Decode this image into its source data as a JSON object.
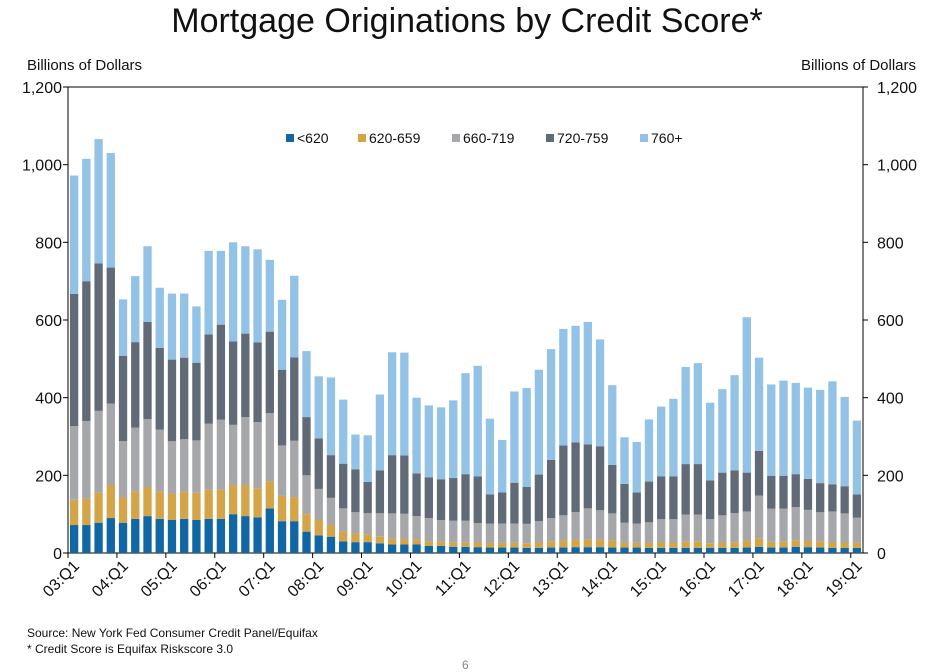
{
  "page_number": "6",
  "source_note": "Source: New York Fed Consumer Credit Panel/Equifax",
  "footnote": "* Credit Score is Equifax Riskscore 3.0",
  "chart_data": {
    "type": "bar",
    "stacked": true,
    "title": "Mortgage Originations by Credit Score*",
    "ylabel_left": "Billions of Dollars",
    "ylabel_right": "Billions of Dollars",
    "ylim": [
      0,
      1200
    ],
    "yticks": [
      0,
      200,
      400,
      600,
      800,
      1000,
      1200
    ],
    "ytick_labels": [
      "0",
      "200",
      "400",
      "600",
      "800",
      "1,000",
      "1,200"
    ],
    "grid": false,
    "legend_position": "top-center",
    "x_tick_labels": [
      "03:Q1",
      "04:Q1",
      "05:Q1",
      "06:Q1",
      "07:Q1",
      "08:Q1",
      "09:Q1",
      "10:Q1",
      "11:Q1",
      "12:Q1",
      "13:Q1",
      "14:Q1",
      "15:Q1",
      "16:Q1",
      "17:Q1",
      "18:Q1",
      "19:Q1"
    ],
    "categories": [
      "03:Q1",
      "03:Q2",
      "03:Q3",
      "03:Q4",
      "04:Q1",
      "04:Q2",
      "04:Q3",
      "04:Q4",
      "05:Q1",
      "05:Q2",
      "05:Q3",
      "05:Q4",
      "06:Q1",
      "06:Q2",
      "06:Q3",
      "06:Q4",
      "07:Q1",
      "07:Q2",
      "07:Q3",
      "07:Q4",
      "08:Q1",
      "08:Q2",
      "08:Q3",
      "08:Q4",
      "09:Q1",
      "09:Q2",
      "09:Q3",
      "09:Q4",
      "10:Q1",
      "10:Q2",
      "10:Q3",
      "10:Q4",
      "11:Q1",
      "11:Q2",
      "11:Q3",
      "11:Q4",
      "12:Q1",
      "12:Q2",
      "12:Q3",
      "12:Q4",
      "13:Q1",
      "13:Q2",
      "13:Q3",
      "13:Q4",
      "14:Q1",
      "14:Q2",
      "14:Q3",
      "14:Q4",
      "15:Q1",
      "15:Q2",
      "15:Q3",
      "15:Q4",
      "16:Q1",
      "16:Q2",
      "16:Q3",
      "16:Q4",
      "17:Q1",
      "17:Q2",
      "17:Q3",
      "17:Q4",
      "18:Q1",
      "18:Q2",
      "18:Q3",
      "18:Q4",
      "19:Q1"
    ],
    "series": [
      {
        "name": "<620",
        "color": "#1167a3",
        "values": [
          72,
          72,
          78,
          90,
          78,
          88,
          95,
          88,
          85,
          88,
          85,
          88,
          88,
          100,
          95,
          92,
          115,
          82,
          82,
          55,
          45,
          42,
          30,
          28,
          28,
          25,
          22,
          22,
          22,
          18,
          18,
          16,
          16,
          15,
          14,
          14,
          14,
          13,
          13,
          14,
          14,
          15,
          15,
          15,
          14,
          14,
          14,
          13,
          13,
          13,
          13,
          13,
          13,
          13,
          13,
          14,
          16,
          14,
          14,
          16,
          15,
          14,
          13,
          13,
          13
        ]
      },
      {
        "name": "620-659",
        "color": "#d4a449",
        "values": [
          65,
          68,
          78,
          85,
          65,
          70,
          75,
          70,
          68,
          70,
          70,
          75,
          75,
          75,
          80,
          75,
          70,
          65,
          62,
          45,
          40,
          30,
          25,
          22,
          20,
          18,
          15,
          14,
          13,
          12,
          12,
          12,
          12,
          12,
          12,
          12,
          12,
          12,
          14,
          16,
          18,
          20,
          20,
          20,
          18,
          12,
          12,
          13,
          14,
          14,
          16,
          16,
          12,
          14,
          15,
          18,
          22,
          15,
          15,
          17,
          16,
          16,
          14,
          14,
          13
        ]
      },
      {
        "name": "660-719",
        "color": "#a5a7aa",
        "values": [
          190,
          200,
          210,
          210,
          145,
          165,
          175,
          160,
          135,
          135,
          135,
          170,
          180,
          155,
          175,
          170,
          175,
          130,
          145,
          100,
          80,
          70,
          60,
          55,
          55,
          60,
          65,
          65,
          60,
          60,
          55,
          55,
          55,
          50,
          50,
          50,
          50,
          50,
          55,
          60,
          65,
          70,
          80,
          75,
          70,
          52,
          50,
          53,
          60,
          60,
          70,
          70,
          62,
          70,
          75,
          75,
          110,
          85,
          85,
          85,
          80,
          75,
          80,
          75,
          65
        ]
      },
      {
        "name": "720-759",
        "color": "#616b78",
        "values": [
          340,
          360,
          380,
          350,
          220,
          220,
          250,
          210,
          210,
          210,
          200,
          230,
          245,
          215,
          215,
          205,
          210,
          195,
          215,
          150,
          130,
          110,
          115,
          110,
          80,
          110,
          150,
          150,
          110,
          105,
          105,
          110,
          120,
          120,
          75,
          80,
          105,
          95,
          120,
          150,
          180,
          180,
          165,
          165,
          125,
          100,
          80,
          105,
          110,
          110,
          130,
          130,
          100,
          110,
          110,
          100,
          115,
          85,
          85,
          85,
          80,
          75,
          70,
          70,
          60
        ]
      },
      {
        "name": "760+",
        "color": "#92c2e5",
        "values": [
          305,
          315,
          320,
          295,
          145,
          170,
          195,
          155,
          170,
          165,
          145,
          215,
          190,
          255,
          225,
          240,
          185,
          180,
          210,
          170,
          160,
          200,
          165,
          90,
          120,
          195,
          265,
          265,
          195,
          185,
          185,
          200,
          260,
          285,
          195,
          135,
          235,
          255,
          270,
          285,
          300,
          300,
          315,
          275,
          205,
          120,
          130,
          160,
          180,
          200,
          250,
          260,
          200,
          215,
          245,
          400,
          240,
          235,
          245,
          235,
          235,
          240,
          265,
          230,
          190
        ]
      }
    ]
  }
}
